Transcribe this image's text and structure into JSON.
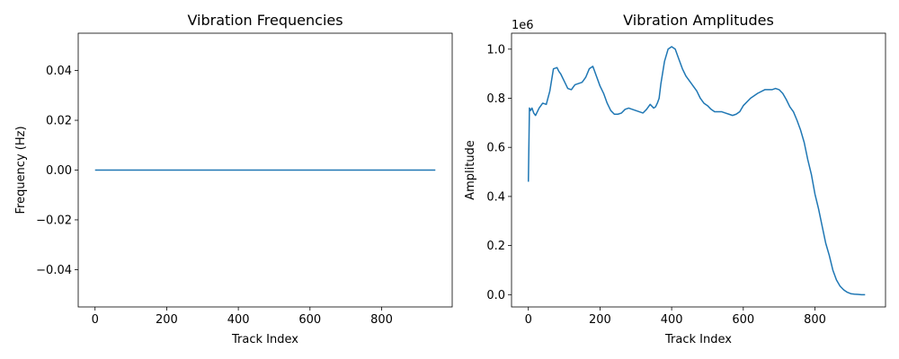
{
  "chart_data": [
    {
      "type": "line",
      "title": "Vibration Frequencies",
      "xlabel": "Track Index",
      "ylabel": "Frequency (Hz)",
      "xlim": [
        -47,
        997
      ],
      "ylim": [
        -0.055,
        0.055
      ],
      "xticks": [
        0,
        200,
        400,
        600,
        800
      ],
      "xtick_labels": [
        "0",
        "200",
        "400",
        "600",
        "800"
      ],
      "yticks": [
        -0.04,
        -0.02,
        0.0,
        0.02,
        0.04
      ],
      "ytick_labels": [
        "−0.04",
        "−0.02",
        "0.00",
        "0.02",
        "0.04"
      ],
      "grid": false,
      "series": [
        {
          "color": "#1f77b4",
          "x": [
            0,
            950
          ],
          "y": [
            0,
            0
          ]
        }
      ]
    },
    {
      "type": "line",
      "title": "Vibration Amplitudes",
      "xlabel": "Track Index",
      "ylabel": "Amplitude",
      "offset_text": "1e6",
      "xlim": [
        -47,
        997
      ],
      "ylim": [
        -0.05,
        1.065
      ],
      "xticks": [
        0,
        200,
        400,
        600,
        800
      ],
      "xtick_labels": [
        "0",
        "200",
        "400",
        "600",
        "800"
      ],
      "yticks": [
        0.0,
        0.2,
        0.4,
        0.6,
        0.8,
        1.0
      ],
      "ytick_labels": [
        "0.0",
        "0.2",
        "0.4",
        "0.6",
        "0.8",
        "1.0"
      ],
      "grid": false,
      "series": [
        {
          "color": "#1f77b4",
          "x": [
            0,
            3,
            6,
            10,
            15,
            20,
            25,
            30,
            40,
            50,
            60,
            70,
            80,
            85,
            90,
            100,
            110,
            120,
            130,
            140,
            150,
            160,
            170,
            180,
            190,
            200,
            210,
            220,
            230,
            240,
            250,
            260,
            270,
            280,
            290,
            300,
            310,
            320,
            330,
            340,
            350,
            355,
            360,
            365,
            370,
            380,
            390,
            400,
            410,
            420,
            430,
            440,
            450,
            460,
            470,
            480,
            490,
            500,
            510,
            520,
            530,
            540,
            550,
            560,
            570,
            580,
            590,
            600,
            620,
            640,
            660,
            670,
            680,
            690,
            700,
            710,
            720,
            730,
            740,
            750,
            760,
            770,
            780,
            790,
            800,
            810,
            820,
            830,
            840,
            850,
            860,
            870,
            880,
            890,
            900,
            910,
            920,
            930,
            940
          ],
          "y": [
            0.46,
            0.76,
            0.75,
            0.76,
            0.74,
            0.73,
            0.745,
            0.76,
            0.78,
            0.775,
            0.83,
            0.92,
            0.925,
            0.91,
            0.9,
            0.87,
            0.84,
            0.835,
            0.855,
            0.86,
            0.865,
            0.885,
            0.92,
            0.93,
            0.89,
            0.85,
            0.82,
            0.78,
            0.75,
            0.735,
            0.735,
            0.74,
            0.755,
            0.76,
            0.755,
            0.75,
            0.745,
            0.74,
            0.755,
            0.775,
            0.76,
            0.765,
            0.78,
            0.8,
            0.86,
            0.95,
            1.0,
            1.01,
            1.0,
            0.96,
            0.92,
            0.89,
            0.87,
            0.85,
            0.83,
            0.8,
            0.78,
            0.77,
            0.755,
            0.745,
            0.745,
            0.745,
            0.74,
            0.735,
            0.73,
            0.735,
            0.745,
            0.77,
            0.8,
            0.82,
            0.835,
            0.835,
            0.835,
            0.84,
            0.835,
            0.82,
            0.795,
            0.765,
            0.745,
            0.71,
            0.67,
            0.62,
            0.55,
            0.49,
            0.41,
            0.35,
            0.28,
            0.21,
            0.16,
            0.1,
            0.06,
            0.035,
            0.02,
            0.01,
            0.004,
            0.002,
            0.001,
            0.0,
            0.0
          ]
        }
      ]
    }
  ]
}
